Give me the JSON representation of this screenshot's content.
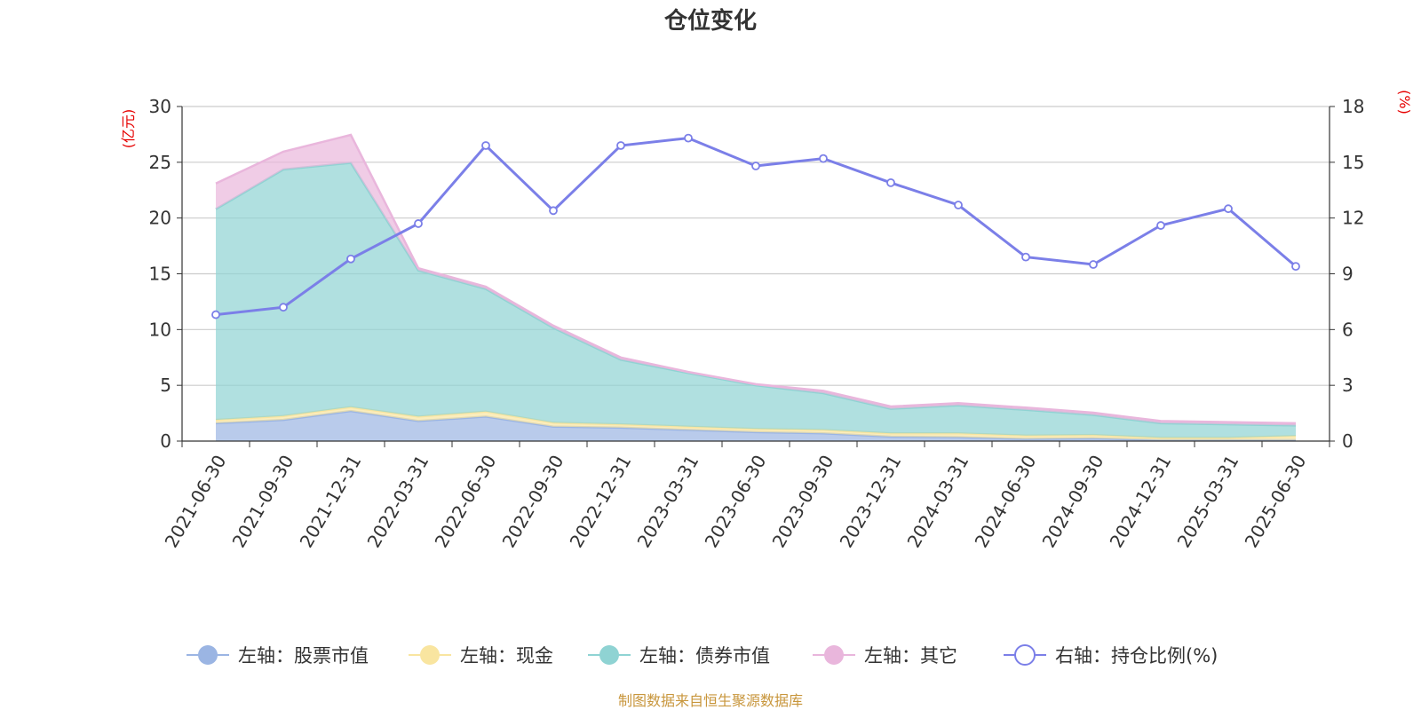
{
  "chart_data": {
    "type": "area",
    "title": "仓位变化",
    "source_note": "制图数据来自恒生聚源数据库",
    "left_axis": {
      "unit_label": "(亿元)",
      "ylim": [
        0,
        30
      ],
      "ticks": [
        0,
        5,
        10,
        15,
        20,
        25,
        30
      ]
    },
    "right_axis": {
      "unit_label": "(%)",
      "ylim": [
        0,
        18
      ],
      "ticks": [
        0,
        3,
        6,
        9,
        12,
        15,
        18
      ]
    },
    "grid": true,
    "legend_position": "bottom",
    "categories": [
      "2021-06-30",
      "2021-09-30",
      "2021-12-31",
      "2022-03-31",
      "2022-06-30",
      "2022-09-30",
      "2022-12-31",
      "2023-03-31",
      "2023-06-30",
      "2023-09-30",
      "2023-12-31",
      "2024-03-31",
      "2024-06-30",
      "2024-09-30",
      "2024-12-31",
      "2025-03-31",
      "2025-06-30"
    ],
    "series": [
      {
        "name": "左轴：股票市值",
        "type": "stacked-area",
        "axis": "left",
        "color": "#9bb5e3",
        "values": [
          1.6,
          1.9,
          2.7,
          1.8,
          2.2,
          1.3,
          1.2,
          1.0,
          0.8,
          0.7,
          0.4,
          0.35,
          0.2,
          0.25,
          0.1,
          0.1,
          0.1
        ]
      },
      {
        "name": "左轴：现金",
        "type": "stacked-area",
        "axis": "left",
        "color": "#f9e5a0",
        "values": [
          0.3,
          0.35,
          0.35,
          0.4,
          0.45,
          0.35,
          0.3,
          0.3,
          0.3,
          0.3,
          0.3,
          0.35,
          0.3,
          0.3,
          0.2,
          0.2,
          0.35
        ]
      },
      {
        "name": "左轴：债券市值",
        "type": "stacked-area",
        "axis": "left",
        "color": "#8fd3d3",
        "values": [
          18.9,
          22.1,
          21.9,
          13.1,
          11.0,
          8.5,
          5.8,
          4.8,
          3.9,
          3.3,
          2.2,
          2.5,
          2.3,
          1.8,
          1.3,
          1.2,
          0.95
        ]
      },
      {
        "name": "左轴：其它",
        "type": "stacked-area",
        "axis": "left",
        "color": "#e9b6dc",
        "values": [
          2.3,
          1.6,
          2.5,
          0.2,
          0.2,
          0.2,
          0.2,
          0.1,
          0.1,
          0.2,
          0.2,
          0.2,
          0.2,
          0.2,
          0.2,
          0.2,
          0.2
        ]
      },
      {
        "name": "右轴：持仓比例(%)",
        "type": "line",
        "axis": "right",
        "color": "#7b7fe8",
        "values": [
          6.8,
          7.2,
          9.8,
          11.7,
          15.9,
          12.4,
          15.9,
          16.3,
          14.8,
          15.2,
          13.9,
          12.7,
          9.9,
          9.5,
          11.6,
          12.5,
          9.4
        ]
      }
    ]
  },
  "colors": {
    "unit_label": "#e60000",
    "source_note": "#c8963c",
    "axis": "#333333",
    "grid": "#cccccc"
  }
}
